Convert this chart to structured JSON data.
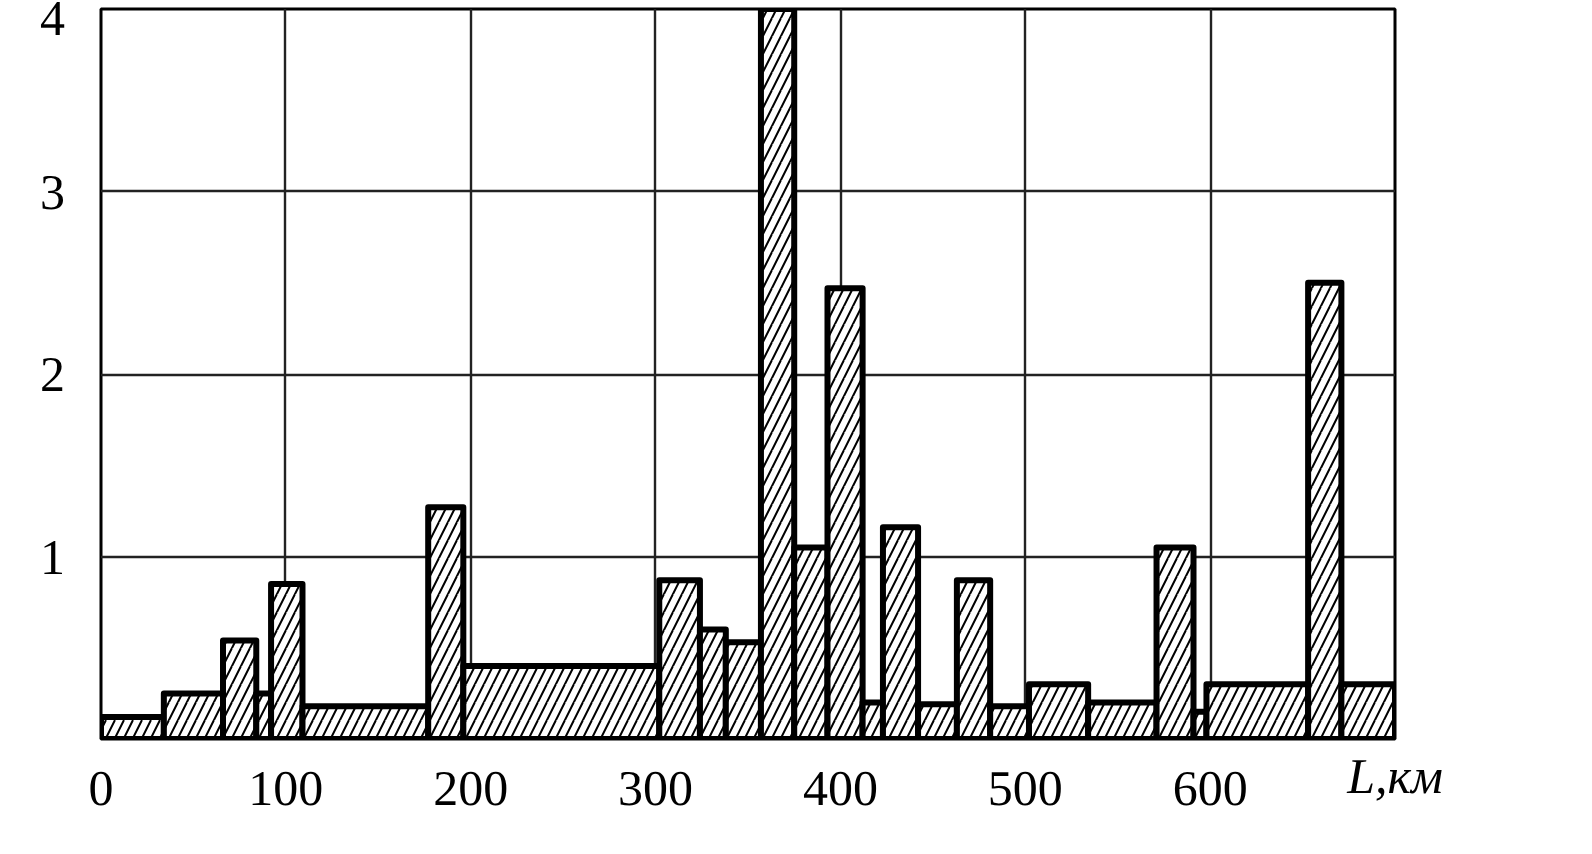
{
  "chart_data": {
    "type": "histogram",
    "xlabel": "L,км",
    "bins": [
      0,
      34,
      66,
      84,
      92,
      109,
      177,
      196,
      302,
      324,
      338,
      357,
      375,
      393,
      412,
      423,
      442,
      463,
      481,
      502,
      534,
      571,
      591,
      598,
      653,
      671,
      700
    ],
    "values": [
      0.12,
      0.25,
      0.54,
      0.25,
      0.85,
      0.18,
      1.27,
      0.4,
      0.87,
      0.6,
      0.53,
      4.0,
      1.05,
      2.47,
      0.2,
      1.16,
      0.19,
      0.87,
      0.18,
      0.3,
      0.2,
      1.05,
      0.15,
      0.3,
      2.5,
      0.3
    ],
    "color": "#000000",
    "xlim": [
      0,
      700
    ],
    "ylim": [
      0,
      4
    ],
    "xticks": [
      0,
      100,
      200,
      300,
      400,
      500,
      600
    ],
    "yticks": [
      1,
      2,
      3,
      4
    ],
    "grid": true
  }
}
